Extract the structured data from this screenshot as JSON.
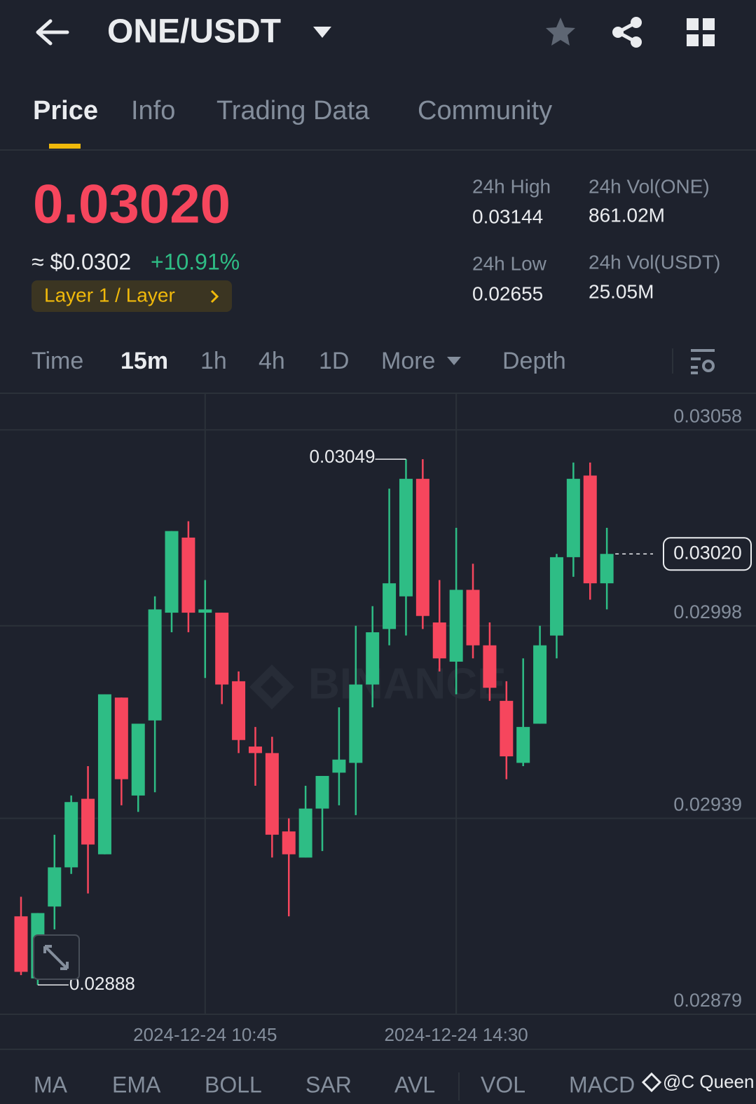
{
  "header": {
    "pair": "ONE/USDT"
  },
  "tabs": [
    "Price",
    "Info",
    "Trading Data",
    "Community"
  ],
  "ticker": {
    "price": "0.03020",
    "usd": "≈ $0.0302",
    "change": "+10.91%",
    "tag": "Layer 1 / Layer",
    "stats": [
      {
        "label": "24h High",
        "value": "0.03144"
      },
      {
        "label": "24h Vol(ONE)",
        "value": "861.02M"
      },
      {
        "label": "24h Low",
        "value": "0.02655"
      },
      {
        "label": "24h Vol(USDT)",
        "value": "25.05M"
      }
    ]
  },
  "intervals": [
    "Time",
    "15m",
    "1h",
    "4h",
    "1D",
    "More",
    "Depth"
  ],
  "chart_data": {
    "type": "candlestick",
    "up_color": "#2ebd85",
    "down_color": "#f6465d",
    "grid": true,
    "x": [
      "2024-12-24 08:00",
      "2024-12-24 08:15",
      "2024-12-24 08:30",
      "2024-12-24 08:45",
      "2024-12-24 09:00",
      "2024-12-24 09:15",
      "2024-12-24 09:30",
      "2024-12-24 09:45",
      "2024-12-24 10:00",
      "2024-12-24 10:15",
      "2024-12-24 10:30",
      "2024-12-24 10:45",
      "2024-12-24 11:00",
      "2024-12-24 11:15",
      "2024-12-24 11:30",
      "2024-12-24 11:45",
      "2024-12-24 12:00",
      "2024-12-24 12:15",
      "2024-12-24 12:30",
      "2024-12-24 12:45",
      "2024-12-24 13:00",
      "2024-12-24 13:15",
      "2024-12-24 13:30",
      "2024-12-24 13:45",
      "2024-12-24 14:00",
      "2024-12-24 14:15",
      "2024-12-24 14:30",
      "2024-12-24 14:45",
      "2024-12-24 15:00",
      "2024-12-24 15:15",
      "2024-12-24 15:30",
      "2024-12-24 15:45",
      "2024-12-24 16:00",
      "2024-12-24 16:15",
      "2024-12-24 16:30",
      "2024-12-24 16:45"
    ],
    "open": [
      0.02909,
      0.0289,
      0.02912,
      0.02924,
      0.02945,
      0.02928,
      0.02976,
      0.02946,
      0.02969,
      0.03002,
      0.03025,
      0.03002,
      0.03002,
      0.02981,
      0.02961,
      0.02959,
      0.02935,
      0.02927,
      0.02942,
      0.02953,
      0.02956,
      0.0298,
      0.02997,
      0.03007,
      0.03043,
      0.02999,
      0.02987,
      0.03009,
      0.02992,
      0.02975,
      0.02956,
      0.02968,
      0.02995,
      0.03019,
      0.03044,
      0.03011
    ],
    "high": [
      0.02915,
      0.0291,
      0.02934,
      0.02946,
      0.02955,
      0.02977,
      0.02976,
      0.02968,
      0.03007,
      0.03027,
      0.0303,
      0.03012,
      0.03002,
      0.02984,
      0.02967,
      0.02964,
      0.02939,
      0.02949,
      0.02952,
      0.02973,
      0.02998,
      0.03004,
      0.0304,
      0.03049,
      0.03049,
      0.03012,
      0.03028,
      0.03017,
      0.02999,
      0.02981,
      0.02988,
      0.02998,
      0.0302,
      0.03048,
      0.03048,
      0.03028
    ],
    "low": [
      0.02891,
      0.02888,
      0.02905,
      0.02922,
      0.02916,
      0.02928,
      0.02943,
      0.02941,
      0.02947,
      0.02996,
      0.02996,
      0.02982,
      0.02974,
      0.02959,
      0.02949,
      0.02927,
      0.02909,
      0.02927,
      0.02929,
      0.02943,
      0.0294,
      0.02973,
      0.02992,
      0.02995,
      0.02997,
      0.02984,
      0.02977,
      0.02988,
      0.02975,
      0.02951,
      0.02955,
      0.02968,
      0.02988,
      0.03013,
      0.03006,
      0.03003
    ],
    "close": [
      0.02892,
      0.0291,
      0.02924,
      0.02944,
      0.02931,
      0.02977,
      0.02951,
      0.02968,
      0.03003,
      0.03027,
      0.03002,
      0.03003,
      0.0298,
      0.02963,
      0.02959,
      0.02934,
      0.02928,
      0.02942,
      0.02952,
      0.02957,
      0.0298,
      0.02996,
      0.03011,
      0.03043,
      0.03001,
      0.02988,
      0.03009,
      0.02992,
      0.02979,
      0.02958,
      0.02967,
      0.02992,
      0.03019,
      0.03043,
      0.03011,
      0.0302
    ],
    "ylim": [
      0.02879,
      0.03069
    ],
    "yticks": [
      0.02879,
      0.02939,
      0.02998,
      0.03058
    ],
    "xticks": [
      "2024-12-24 10:45",
      "2024-12-24 14:30"
    ],
    "high_label": 0.03049,
    "low_label": 0.02888,
    "current_price": {
      "value": 0.0302,
      "label": "0.03020"
    },
    "watermark": "BINANCE"
  },
  "indicators": [
    "MA",
    "EMA",
    "BOLL",
    "SAR",
    "AVL",
    "VOL",
    "MACD"
  ],
  "credit": "@C Queen"
}
